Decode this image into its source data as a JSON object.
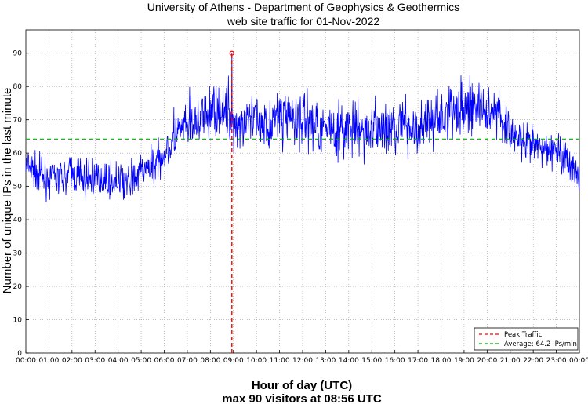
{
  "chart_data": {
    "type": "line",
    "title": "University of Athens - Department of Geophysics & Geothermics",
    "subtitle": "web site traffic for 01-Nov-2022",
    "xlabel": "Hour of day (UTC)",
    "xlabel2": "max 90 visitors at 08:56 UTC",
    "ylabel": "Number of unique IPs in the last minute",
    "xlim": [
      0,
      24
    ],
    "ylim": [
      0,
      97
    ],
    "x_ticks": [
      "00:00",
      "01:00",
      "02:00",
      "03:00",
      "04:00",
      "05:00",
      "06:00",
      "07:00",
      "08:00",
      "09:00",
      "10:00",
      "11:00",
      "12:00",
      "13:00",
      "14:00",
      "15:00",
      "16:00",
      "17:00",
      "18:00",
      "19:00",
      "20:00",
      "21:00",
      "22:00",
      "23:00",
      "00:00"
    ],
    "y_ticks": [
      0,
      10,
      20,
      30,
      40,
      50,
      60,
      70,
      80,
      90
    ],
    "grid": true,
    "legend_position": "bottom-right",
    "series": [
      {
        "name": "",
        "color": "#0000ff",
        "x_hours": [
          0,
          0.5,
          1,
          1.5,
          2,
          2.5,
          3,
          3.5,
          4,
          4.5,
          5,
          5.5,
          6,
          6.25,
          6.5,
          6.75,
          7,
          7.25,
          7.5,
          7.75,
          8,
          8.25,
          8.5,
          8.75,
          9,
          9.5,
          10,
          10.5,
          11,
          11.5,
          12,
          12.5,
          13,
          13.5,
          14,
          14.5,
          15,
          15.5,
          16,
          16.5,
          17,
          17.5,
          18,
          18.5,
          19,
          19.5,
          20,
          20.5,
          21,
          21.5,
          22,
          22.5,
          23,
          23.5,
          24
        ],
        "y_center": [
          56,
          54,
          52,
          52,
          54,
          52,
          53,
          52,
          51,
          51,
          54,
          56,
          60,
          62,
          65,
          67,
          68,
          68,
          70,
          70,
          72,
          73,
          73,
          70,
          69,
          69,
          69,
          70,
          70,
          71,
          70,
          69,
          68,
          66,
          67,
          66,
          67,
          67,
          68,
          68,
          68,
          69,
          71,
          72,
          73,
          74,
          73,
          72,
          66,
          63,
          62,
          61,
          61,
          58,
          52
        ],
        "noise_amplitude": 3.5,
        "peak": {
          "time": "08:56",
          "x_hour": 8.933,
          "value": 90
        }
      }
    ],
    "average_line": {
      "value": 64.2,
      "color": "#00aa00"
    },
    "peak_line": {
      "x_hour": 8.933,
      "color": "#ff0000"
    },
    "legend": [
      {
        "label": "Peak Traffic",
        "color": "#ff0000",
        "style": "dashed"
      },
      {
        "label": "Average: 64.2 IPs/min",
        "color": "#00aa00",
        "style": "dashed"
      }
    ]
  }
}
